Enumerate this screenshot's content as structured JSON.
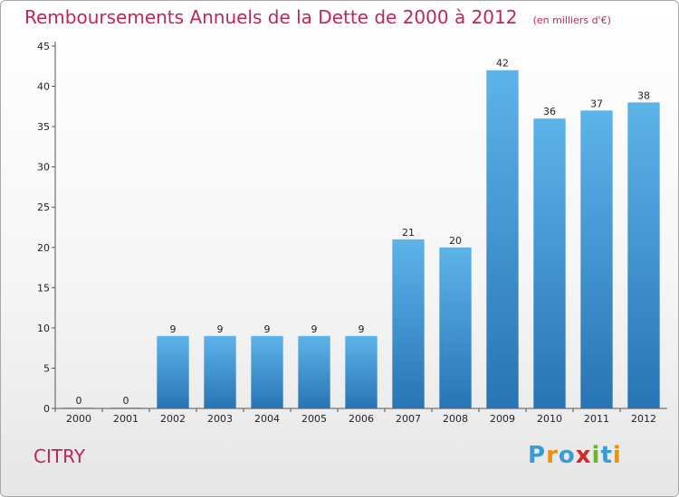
{
  "chart_data": {
    "type": "bar",
    "title": "Remboursements Annuels de la Dette de 2000 à 2012",
    "subtitle": "(en milliers d'€)",
    "xlabel": "",
    "ylabel": "",
    "categories": [
      "2000",
      "2001",
      "2002",
      "2003",
      "2004",
      "2005",
      "2006",
      "2007",
      "2008",
      "2009",
      "2010",
      "2011",
      "2012"
    ],
    "values": [
      0,
      0,
      9,
      9,
      9,
      9,
      9,
      21,
      20,
      42,
      36,
      37,
      38
    ],
    "data_labels": [
      "0",
      "0",
      "9",
      "9",
      "9",
      "9",
      "9",
      "21",
      "20",
      "42",
      "36",
      "37",
      "38"
    ],
    "ylim": [
      0,
      45
    ],
    "yticks": [
      0,
      5,
      10,
      15,
      20,
      25,
      30,
      35,
      40,
      45
    ],
    "grid": false,
    "legend": "none",
    "colors": {
      "bar_top": "#5eb3ea",
      "bar_bottom": "#2874b4",
      "axis": "#555555",
      "title": "#c0245c"
    }
  },
  "footer": {
    "town": "CITRY",
    "brand": "Proxiti"
  }
}
